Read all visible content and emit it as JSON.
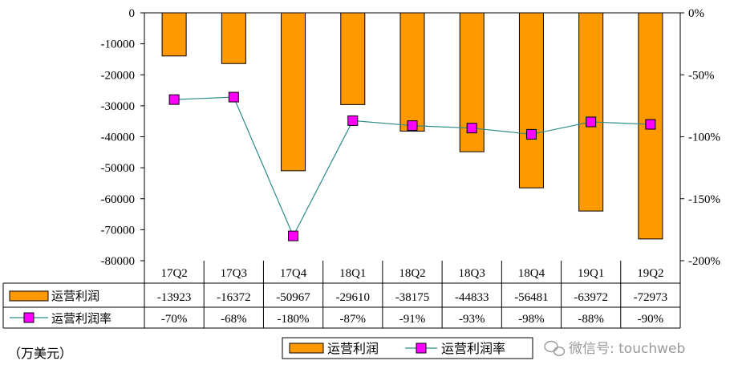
{
  "chart_data": {
    "type": "bar",
    "categories": [
      "17Q2",
      "17Q3",
      "17Q4",
      "18Q1",
      "18Q2",
      "18Q3",
      "18Q4",
      "19Q1",
      "19Q2"
    ],
    "series": [
      {
        "name": "运营利润",
        "type": "bar",
        "axis": "left",
        "color": "#FF9900",
        "values": [
          -13923,
          -16372,
          -50967,
          -29610,
          -38175,
          -44833,
          -56481,
          -63972,
          -72973
        ]
      },
      {
        "name": "运营利润率",
        "type": "line",
        "axis": "right",
        "line_color": "#2E8B8B",
        "marker_color": "#FF00FF",
        "values": [
          -70,
          -68,
          -180,
          -87,
          -91,
          -93,
          -98,
          -88,
          -90
        ]
      }
    ],
    "table_values": {
      "operating_profit": [
        "-13923",
        "-16372",
        "-50967",
        "-29610",
        "-38175",
        "-44833",
        "-56481",
        "-63972",
        "-72973"
      ],
      "operating_margin": [
        "-70%",
        "-68%",
        "-180%",
        "-87%",
        "-91%",
        "-93%",
        "-98%",
        "-88%",
        "-90%"
      ]
    },
    "y_left": {
      "ticks": [
        "0",
        "-10000",
        "-20000",
        "-30000",
        "-40000",
        "-50000",
        "-60000",
        "-70000",
        "-80000"
      ],
      "ylim": [
        -80000,
        0
      ]
    },
    "y_right": {
      "ticks": [
        "0%",
        "-50%",
        "-100%",
        "-150%",
        "-200%"
      ],
      "ylim": [
        -200,
        0
      ]
    },
    "grid": false,
    "legend_position": "bottom-center",
    "legend": [
      "运营利润",
      "运营利润率"
    ]
  },
  "unit_label": "（万美元）",
  "watermark": "微信号: touchweb"
}
